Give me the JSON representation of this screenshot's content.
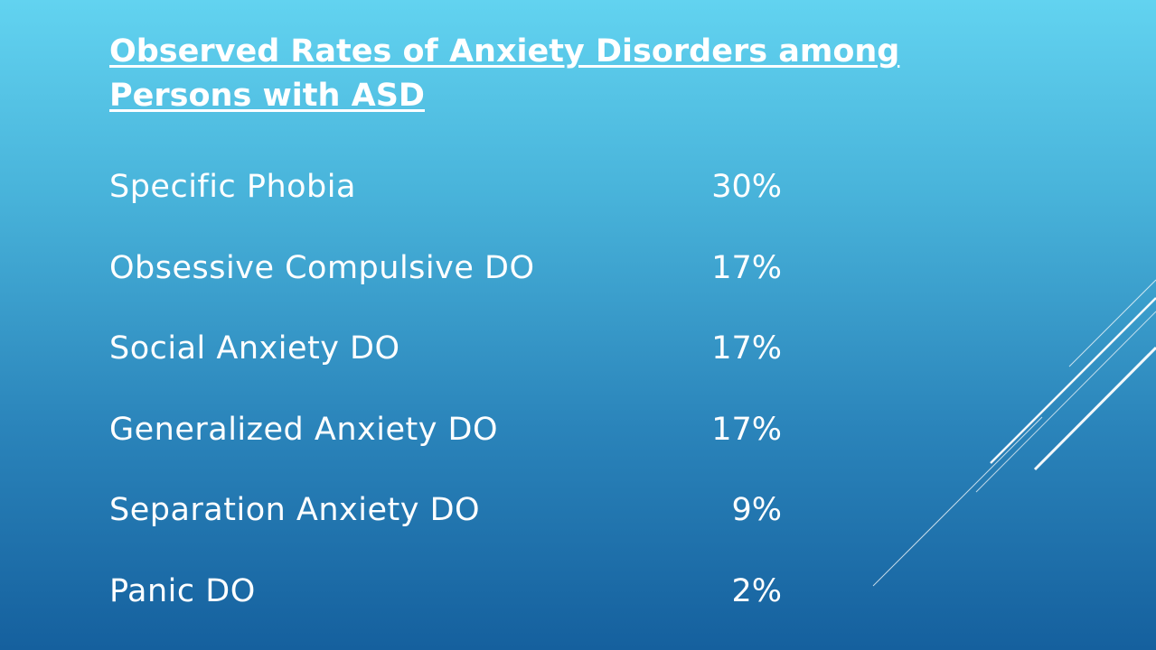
{
  "slide": {
    "title": "Observed Rates of Anxiety Disorders among Persons with ASD",
    "rows": [
      {
        "label": "Specific Phobia",
        "value": "30%"
      },
      {
        "label": "Obsessive Compulsive DO",
        "value": "17%"
      },
      {
        "label": "Social Anxiety DO",
        "value": "17%"
      },
      {
        "label": "Generalized Anxiety DO",
        "value": "17%"
      },
      {
        "label": "Separation Anxiety DO",
        "value": "9%"
      },
      {
        "label": "Panic DO",
        "value": "2%"
      }
    ]
  },
  "colors": {
    "background_top": "#62d3f0",
    "background_bottom": "#15609e",
    "text": "#ffffff"
  }
}
